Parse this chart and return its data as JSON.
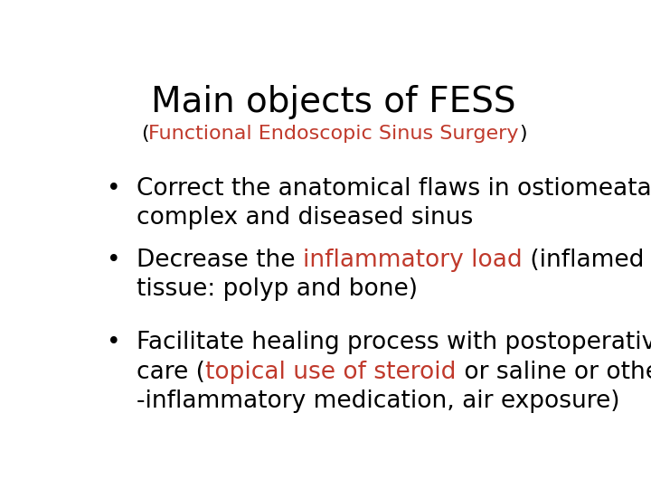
{
  "title_line1": "Main objects of FESS",
  "title_line2_prefix": "(",
  "title_line2_red": "Functional Endoscopic Sinus Surgery",
  "title_line2_suffix": ")",
  "title_fontsize": 28,
  "subtitle_fontsize": 16,
  "bullet_fontsize": 19,
  "background_color": "#ffffff",
  "text_color": "#000000",
  "red_color": "#c0392b",
  "bullets": [
    {
      "parts": [
        {
          "text": "Correct the anatomical flaws in ostiomeatal\ncomplex and diseased sinus",
          "color": "#000000"
        }
      ]
    },
    {
      "parts": [
        {
          "text": "Decrease the ",
          "color": "#000000"
        },
        {
          "text": "inflammatory load",
          "color": "#c0392b"
        },
        {
          "text": " (inflamed\ntissue: polyp and bone)",
          "color": "#000000"
        }
      ]
    },
    {
      "parts": [
        {
          "text": "Facilitate healing process with postoperative\ncare (",
          "color": "#000000"
        },
        {
          "text": "topical use of steroid",
          "color": "#c0392b"
        },
        {
          "text": " or saline or other anti\n-inflammatory medication, air exposure)",
          "color": "#000000"
        }
      ]
    }
  ]
}
